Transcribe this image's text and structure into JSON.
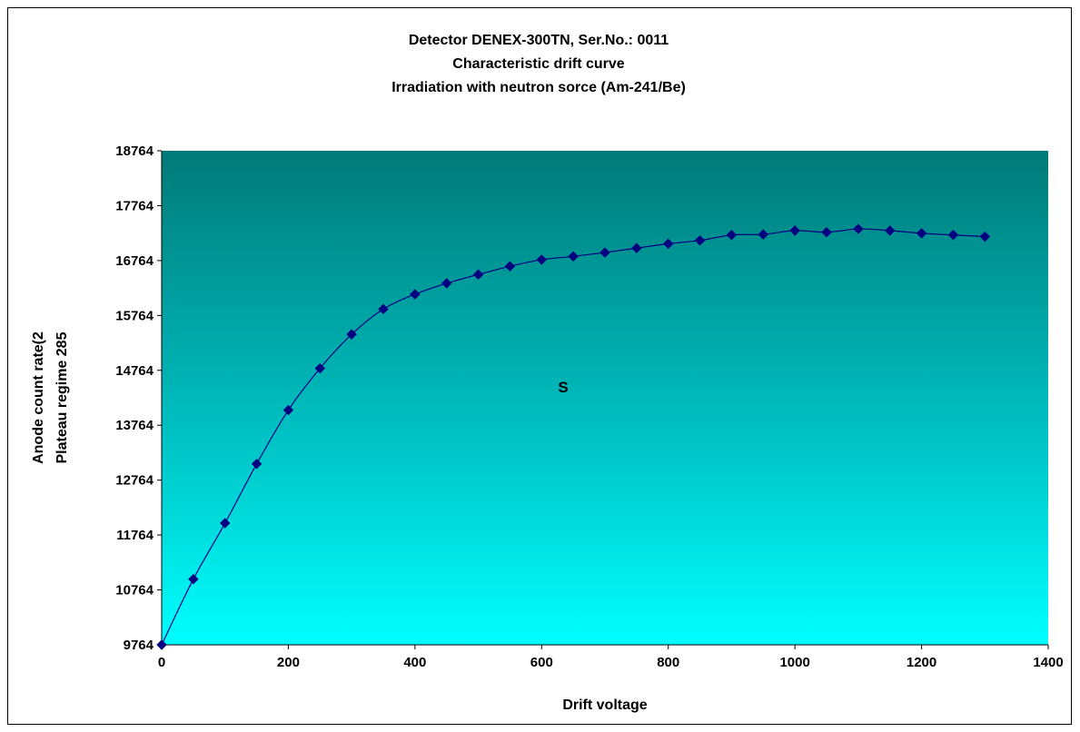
{
  "chart_data": {
    "type": "line",
    "title_lines": [
      "Detector DENEX-300TN, Ser.No.: 0011",
      "Characteristic drift curve",
      "Irradiation with neutron sorce (Am-241/Be)"
    ],
    "xlabel": "Drift voltage",
    "ylabel_lines": [
      "Anode count rate(2",
      "Plateau regime 285"
    ],
    "annotation": "S",
    "xlim": [
      0,
      1400
    ],
    "ylim": [
      9764,
      18764
    ],
    "x_ticks": [
      "0",
      "200",
      "400",
      "600",
      "800",
      "1000",
      "1200",
      "1400"
    ],
    "y_ticks": [
      "9764",
      "10764",
      "11764",
      "12764",
      "13764",
      "14764",
      "15764",
      "16764",
      "17764",
      "18764"
    ],
    "grid": false,
    "plot_background": "gradient from #007a78 (top) to #00ffff (bottom)",
    "series": [
      {
        "color": "#000080",
        "marker": "diamond",
        "smooth": true,
        "x": [
          0,
          50,
          100,
          150,
          200,
          250,
          300,
          350,
          400,
          450,
          500,
          550,
          600,
          650,
          700,
          750,
          800,
          850,
          900,
          950,
          1000,
          1050,
          1100,
          1150,
          1200,
          1250,
          1300
        ],
        "y": [
          9764,
          10960,
          11980,
          13060,
          14040,
          14800,
          15420,
          15880,
          16150,
          16350,
          16510,
          16660,
          16780,
          16840,
          16910,
          16990,
          17070,
          17130,
          17230,
          17240,
          17310,
          17280,
          17340,
          17310,
          17260,
          17230,
          17200
        ]
      }
    ]
  }
}
